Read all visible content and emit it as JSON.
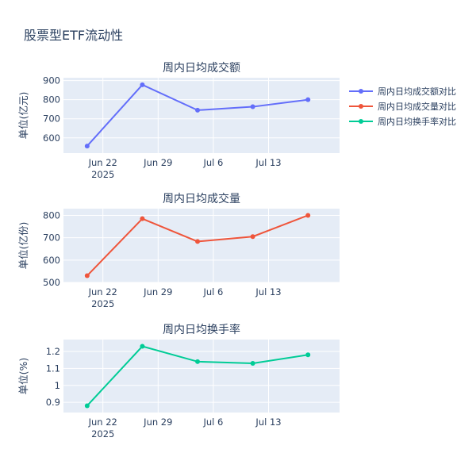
{
  "title": "股票型ETF流动性",
  "x_ticks": [
    "Jun 22",
    "Jun 29",
    "Jul 6",
    "Jul 13"
  ],
  "x_year": "2025",
  "chart_data": [
    {
      "type": "line",
      "title": "周内日均成交额",
      "ylabel": "单位(亿元)",
      "ylim": [
        520,
        915
      ],
      "yticks": [
        600,
        700,
        800,
        900
      ],
      "yticklabels": [
        "600",
        "700",
        "800",
        "900"
      ],
      "x": [
        "2025-06-20",
        "2025-06-27",
        "2025-07-04",
        "2025-07-11",
        "2025-07-18"
      ],
      "series": [
        {
          "name": "周内日均成交额对比",
          "color": "#636efa",
          "values": [
            557,
            878,
            745,
            763,
            800
          ]
        }
      ]
    },
    {
      "type": "line",
      "title": "周内日均成交量",
      "ylabel": "单位(亿份)",
      "ylim": [
        500,
        830
      ],
      "yticks": [
        500,
        600,
        700,
        800
      ],
      "yticklabels": [
        "500",
        "600",
        "700",
        "800"
      ],
      "x": [
        "2025-06-20",
        "2025-06-27",
        "2025-07-04",
        "2025-07-11",
        "2025-07-18"
      ],
      "series": [
        {
          "name": "周内日均成交量对比",
          "color": "#ef553b",
          "values": [
            530,
            785,
            683,
            705,
            800
          ]
        }
      ]
    },
    {
      "type": "line",
      "title": "周内日均换手率",
      "ylabel": "单位(%)",
      "ylim": [
        0.84,
        1.27
      ],
      "yticks": [
        0.9,
        1.0,
        1.1,
        1.2
      ],
      "yticklabels": [
        "0.9",
        "1",
        "1.1",
        "1.2"
      ],
      "x": [
        "2025-06-20",
        "2025-06-27",
        "2025-07-04",
        "2025-07-11",
        "2025-07-18"
      ],
      "series": [
        {
          "name": "周内日均换手率对比",
          "color": "#00cc96",
          "values": [
            0.88,
            1.23,
            1.14,
            1.13,
            1.18
          ]
        }
      ]
    }
  ],
  "legend": [
    {
      "label": "周内日均成交额对比",
      "color": "#636efa"
    },
    {
      "label": "周内日均成交量对比",
      "color": "#ef553b"
    },
    {
      "label": "周内日均换手率对比",
      "color": "#00cc96"
    }
  ]
}
